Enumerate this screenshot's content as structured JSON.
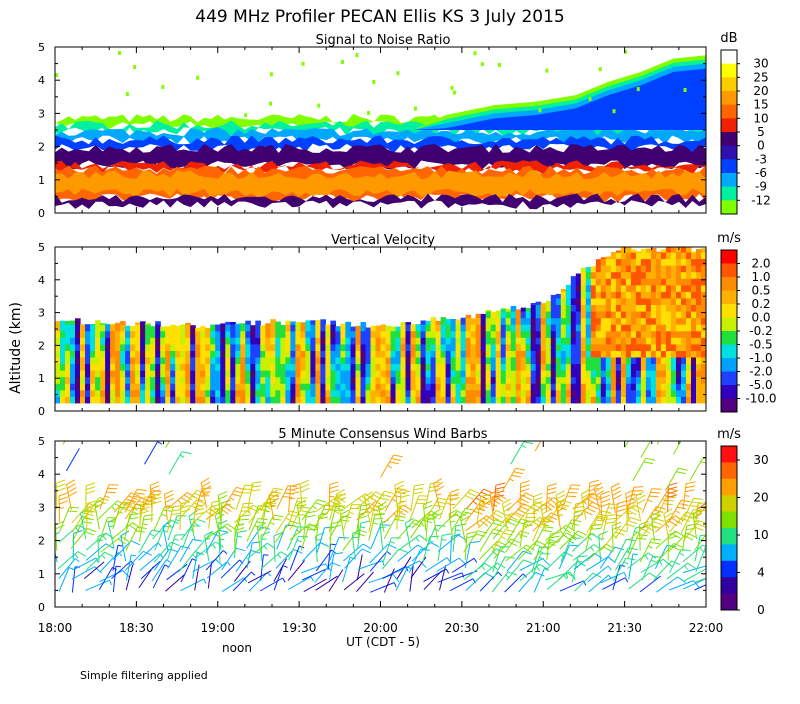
{
  "figure": {
    "title": "449 MHz Profiler PECAN Ellis KS   3 July 2015",
    "ylabel": "Altitude (km)",
    "xlabel": "UT  (CDT - 5)",
    "noon_label": "noon",
    "footnote": "Simple filtering applied"
  },
  "chart_data": [
    {
      "type": "heatmap",
      "title": "Signal to Noise Ratio",
      "units": "dB",
      "x_ticks": [
        "18:00",
        "18:30",
        "19:00",
        "19:30",
        "20:00",
        "20:30",
        "21:00",
        "21:30",
        "22:00"
      ],
      "xlim_hours": [
        18,
        22
      ],
      "y_ticks": [
        "0",
        "1",
        "2",
        "3",
        "4",
        "5"
      ],
      "ylim_km": [
        0,
        5
      ],
      "colorbar_labels": [
        "30",
        "25",
        "20",
        "15",
        "10",
        "5",
        "0",
        "-3",
        "-6",
        "-9",
        "-12"
      ],
      "colorbar_colors": [
        "#ffffff",
        "#ffff00",
        "#ffcc00",
        "#ff9900",
        "#ff6600",
        "#ee2200",
        "#400070",
        "#3010b0",
        "#0040ff",
        "#00a8ff",
        "#00f0a0",
        "#80ff00"
      ],
      "layers": [
        {
          "name": "noise floor (-12 to -9 dB)",
          "bottom_km": 2.65,
          "top_km": 2.85,
          "color": "#80ff00"
        },
        {
          "name": "-9 to -6 dB",
          "bottom_km": 2.45,
          "top_km": 2.65,
          "color": "#00f0a0"
        },
        {
          "name": "-6 to -3 dB",
          "bottom_km": 2.2,
          "top_km": 2.45,
          "color": "#00a8ff"
        },
        {
          "name": "-3 to 0 dB",
          "bottom_km": 1.95,
          "top_km": 2.2,
          "color": "#0040ff"
        },
        {
          "name": "0 to 5 dB",
          "bottom_km": 1.45,
          "top_km": 1.95,
          "color": "#400070"
        },
        {
          "name": "5 to 10 dB",
          "bottom_km": 1.3,
          "top_km": 1.45,
          "color": "#ee2200"
        },
        {
          "name": "10 to 15 dB",
          "bottom_km": 0.45,
          "top_km": 1.3,
          "color": "#ff6600"
        },
        {
          "name": "15 to 20 dB",
          "bottom_km": 0.6,
          "top_km": 1.15,
          "color": "#ff9900"
        },
        {
          "name": "low 0 to 5 dB",
          "bottom_km": 0.25,
          "top_km": 0.45,
          "color": "#400070"
        }
      ]
    },
    {
      "type": "heatmap",
      "title": "Vertical Velocity",
      "units": "m/s",
      "x_ticks": [
        "18:00",
        "18:30",
        "19:00",
        "19:30",
        "20:00",
        "20:30",
        "21:00",
        "21:30",
        "22:00"
      ],
      "xlim_hours": [
        18,
        22
      ],
      "y_ticks": [
        "0",
        "1",
        "2",
        "3",
        "4",
        "5"
      ],
      "ylim_km": [
        0,
        5
      ],
      "colorbar_labels": [
        "2.0",
        "1.0",
        "0.5",
        "0.2",
        "0.0",
        "-0.2",
        "-0.5",
        "-1.0",
        "-2.0",
        "-5.0",
        "-10.0"
      ],
      "colorbar_colors": [
        "#ff0000",
        "#ff5500",
        "#ff8c00",
        "#ffb000",
        "#ffe000",
        "#c8f000",
        "#20e040",
        "#00e0e0",
        "#00a0ff",
        "#2040ff",
        "#3000c0",
        "#500080"
      ],
      "data_top_km": [
        [
          18.0,
          2.75
        ],
        [
          19.0,
          2.6
        ],
        [
          19.5,
          2.75
        ],
        [
          20.0,
          2.6
        ],
        [
          20.5,
          2.85
        ],
        [
          21.0,
          3.3
        ],
        [
          21.25,
          4.3
        ],
        [
          21.5,
          4.95
        ],
        [
          22.0,
          4.95
        ]
      ],
      "data_bottom_km": 0.25
    },
    {
      "type": "scatter",
      "title": "5 Minute Consensus Wind Barbs",
      "units": "m/s",
      "x_ticks": [
        "18:00",
        "18:30",
        "19:00",
        "19:30",
        "20:00",
        "20:30",
        "21:00",
        "21:30",
        "22:00"
      ],
      "xlim_hours": [
        18,
        22
      ],
      "y_ticks": [
        "0",
        "1",
        "2",
        "3",
        "4",
        "5"
      ],
      "ylim_km": [
        0,
        5
      ],
      "colorbar_labels": [
        "30",
        "20",
        "10",
        "4",
        "0"
      ],
      "colorbar_colors": [
        "#ff1010",
        "#ff6600",
        "#ffa000",
        "#d0d000",
        "#80e000",
        "#20e080",
        "#00b0ff",
        "#0030ff",
        "#3000a0",
        "#500080"
      ],
      "barb_interval_minutes": 5,
      "barb_levels_km": [
        0.5,
        0.8,
        1.1,
        1.4,
        1.7,
        2.0,
        2.3,
        2.6,
        2.9
      ],
      "speed_by_level_ms": [
        2,
        4,
        5,
        7,
        9,
        11,
        14,
        16,
        18
      ],
      "direction_deg": 200,
      "upper_level_barbs": [
        {
          "t_hours": 18.05,
          "km": 4.9,
          "speed": 10
        },
        {
          "t_hours": 18.07,
          "km": 4.1,
          "speed": 2
        },
        {
          "t_hours": 18.15,
          "km": 5.0,
          "speed": 7
        },
        {
          "t_hours": 18.55,
          "km": 4.3,
          "speed": 3
        },
        {
          "t_hours": 18.68,
          "km": 4.8,
          "speed": 12
        },
        {
          "t_hours": 18.7,
          "km": 4.0,
          "speed": 9
        },
        {
          "t_hours": 20.0,
          "km": 3.9,
          "speed": 18
        },
        {
          "t_hours": 20.8,
          "km": 4.3,
          "speed": 8
        },
        {
          "t_hours": 20.75,
          "km": 3.5,
          "speed": 18
        },
        {
          "t_hours": 20.95,
          "km": 4.7,
          "speed": 20
        },
        {
          "t_hours": 21.05,
          "km": 5.0,
          "speed": 20
        },
        {
          "t_hours": 21.2,
          "km": 5.0,
          "speed": 20
        },
        {
          "t_hours": 21.35,
          "km": 5.0,
          "speed": 20
        },
        {
          "t_hours": 21.5,
          "km": 4.8,
          "speed": 12
        },
        {
          "t_hours": 21.6,
          "km": 4.5,
          "speed": 12
        },
        {
          "t_hours": 21.7,
          "km": 4.9,
          "speed": 10
        },
        {
          "t_hours": 21.8,
          "km": 4.6,
          "speed": 12
        },
        {
          "t_hours": 21.9,
          "km": 3.8,
          "speed": 12
        },
        {
          "t_hours": 21.55,
          "km": 3.8,
          "speed": 12
        },
        {
          "t_hours": 21.75,
          "km": 3.5,
          "speed": 10
        }
      ]
    }
  ]
}
